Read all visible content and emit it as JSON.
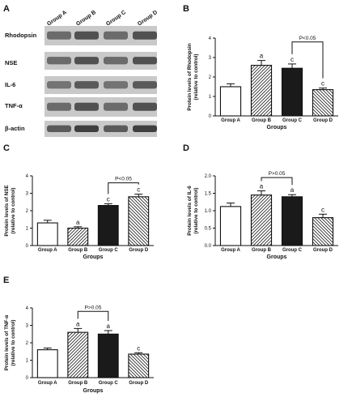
{
  "blot_panel": {
    "label": "A",
    "groups": [
      "Group A",
      "Group B",
      "Group C",
      "Group D"
    ],
    "proteins": [
      "Rhodopsin",
      "NSE",
      "IL-6",
      "TNF-α",
      "β-actin"
    ]
  },
  "chart_data": [
    {
      "panel": "B",
      "type": "bar",
      "categories": [
        "Group A",
        "Group B",
        "Group C",
        "Group D"
      ],
      "values": [
        1.5,
        2.6,
        2.45,
        1.35
      ],
      "errors": [
        0.15,
        0.25,
        0.22,
        0.08
      ],
      "fills": [
        "white",
        "hatch",
        "black",
        "hatch-rev"
      ],
      "annotations": [
        "",
        "a",
        "c",
        "c"
      ],
      "comparison": {
        "from": 2,
        "to": 3,
        "label": "P<0.05",
        "y": 3.8
      },
      "xlabel": "Groups",
      "ylabel": [
        "Protein levels of Rhodopsin",
        "(relative to control)"
      ],
      "ylim": [
        0,
        4
      ],
      "yticks": [
        "0",
        "1",
        "2",
        "3",
        "4"
      ]
    },
    {
      "panel": "C",
      "type": "bar",
      "categories": [
        "Group A",
        "Group B",
        "Group C",
        "Group D"
      ],
      "values": [
        1.3,
        1.0,
        2.3,
        2.8
      ],
      "errors": [
        0.15,
        0.08,
        0.1,
        0.15
      ],
      "fills": [
        "white",
        "hatch",
        "black",
        "hatch-rev"
      ],
      "annotations": [
        "",
        "a",
        "c",
        "c"
      ],
      "comparison": {
        "from": 2,
        "to": 3,
        "label": "P<0.05",
        "y": 3.6
      },
      "xlabel": "Groups",
      "ylabel": [
        "Protein levels of NSE",
        "(relative to control)"
      ],
      "ylim": [
        0,
        4
      ],
      "yticks": [
        "0",
        "1",
        "2",
        "3",
        "4"
      ]
    },
    {
      "panel": "D",
      "type": "bar",
      "categories": [
        "Group A",
        "Group B",
        "Group C",
        "Group D"
      ],
      "values": [
        1.12,
        1.45,
        1.4,
        0.8
      ],
      "errors": [
        0.1,
        0.12,
        0.06,
        0.1
      ],
      "fills": [
        "white",
        "hatch",
        "black",
        "hatch-rev"
      ],
      "annotations": [
        "",
        "a",
        "a",
        "c"
      ],
      "comparison": {
        "from": 1,
        "to": 2,
        "label": "P>0.05",
        "y": 1.95
      },
      "xlabel": "Groups",
      "ylabel": [
        "Protein levels of IL-6",
        "(relative to control)"
      ],
      "ylim": [
        0,
        2
      ],
      "yticks": [
        "0.0",
        "0.5",
        "1.0",
        "1.5",
        "2.0"
      ]
    },
    {
      "panel": "E",
      "type": "bar",
      "categories": [
        "Group A",
        "Group B",
        "Group C",
        "Group D"
      ],
      "values": [
        1.6,
        2.6,
        2.5,
        1.35
      ],
      "errors": [
        0.1,
        0.22,
        0.2,
        0.08
      ],
      "fills": [
        "white",
        "hatch",
        "black",
        "hatch-rev"
      ],
      "annotations": [
        "",
        "a",
        "a",
        "c"
      ],
      "comparison": {
        "from": 1,
        "to": 2,
        "label": "P>0.05",
        "y": 3.8
      },
      "xlabel": "Groups",
      "ylabel": [
        "Protein levels of TNF-α",
        "(relative to control)"
      ],
      "ylim": [
        0,
        4
      ],
      "yticks": [
        "0",
        "1",
        "2",
        "3",
        "4"
      ]
    }
  ]
}
